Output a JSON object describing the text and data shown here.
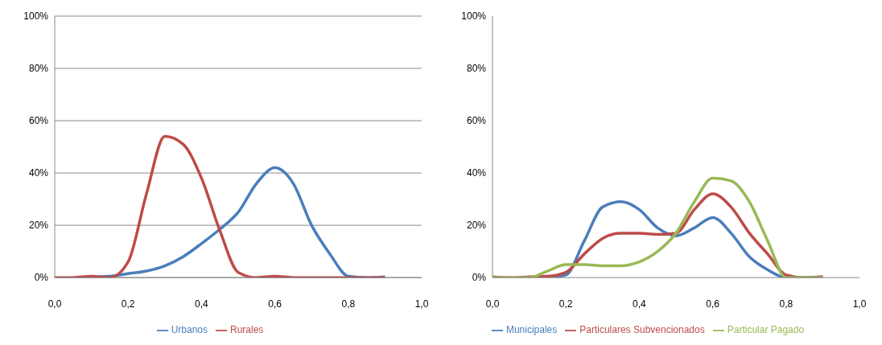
{
  "chart_data": [
    {
      "type": "line",
      "x": [
        0,
        0.05,
        0.1,
        0.15,
        0.2,
        0.25,
        0.3,
        0.35,
        0.4,
        0.45,
        0.5,
        0.55,
        0.6,
        0.65,
        0.7,
        0.75,
        0.8,
        0.85,
        0.9
      ],
      "series": [
        {
          "name": "Urbanos",
          "color": "#4a7ebb",
          "values": [
            null,
            null,
            0.3,
            0.5,
            1.5,
            2.5,
            4.5,
            8,
            13,
            18.5,
            25,
            36,
            42,
            36,
            20,
            9,
            0.5,
            0,
            0.3
          ]
        },
        {
          "name": "Rurales",
          "color": "#be4b48",
          "values": [
            0,
            0,
            0.5,
            0,
            6,
            32,
            54,
            51,
            38,
            18,
            2,
            0,
            0.5,
            0,
            0,
            0,
            0,
            0,
            0
          ]
        }
      ],
      "xlim": [
        0,
        1
      ],
      "xticks": [
        {
          "value": 0,
          "label": "0,0"
        },
        {
          "value": 0.2,
          "label": "0,2"
        },
        {
          "value": 0.4,
          "label": "0,4"
        },
        {
          "value": 0.6,
          "label": "0,6"
        },
        {
          "value": 0.8,
          "label": "0,8"
        },
        {
          "value": 1,
          "label": "1,0"
        }
      ],
      "ylim": [
        0,
        100
      ],
      "yticks": [
        {
          "value": 0,
          "label": "0%"
        },
        {
          "value": 20,
          "label": "20%"
        },
        {
          "value": 40,
          "label": "40%"
        },
        {
          "value": 60,
          "label": "60%"
        },
        {
          "value": 80,
          "label": "80%"
        },
        {
          "value": 100,
          "label": "100%"
        }
      ],
      "grid": "y",
      "legend": "bottom",
      "marker": "none",
      "line_style": "solid"
    },
    {
      "type": "line",
      "x": [
        0,
        0.05,
        0.1,
        0.15,
        0.2,
        0.25,
        0.3,
        0.35,
        0.4,
        0.45,
        0.5,
        0.55,
        0.6,
        0.65,
        0.7,
        0.75,
        0.8,
        0.85,
        0.9
      ],
      "series": [
        {
          "name": "Municipales",
          "color": "#4a7ebb",
          "values": [
            null,
            null,
            0,
            0,
            1,
            14,
            27,
            29,
            26,
            19,
            16,
            19,
            23,
            17,
            8,
            3,
            0,
            0,
            0.3
          ]
        },
        {
          "name": "Particulares Subvencionados",
          "color": "#be4b48",
          "values": [
            0.3,
            0,
            0.3,
            0.5,
            2,
            9,
            15,
            17,
            17,
            16.5,
            17,
            26,
            32,
            27,
            17,
            9,
            1,
            0,
            0.3
          ]
        },
        {
          "name": "Particular Pagado",
          "color": "#98b954",
          "values": [
            0,
            0,
            0,
            2.5,
            5,
            5,
            4.5,
            4.5,
            6,
            10,
            17,
            29,
            38,
            37,
            29,
            14,
            0,
            0,
            0
          ]
        }
      ],
      "xlim": [
        0,
        1
      ],
      "xticks": [
        {
          "value": 0,
          "label": "0,0"
        },
        {
          "value": 0.2,
          "label": "0,2"
        },
        {
          "value": 0.4,
          "label": "0,4"
        },
        {
          "value": 0.6,
          "label": "0,6"
        },
        {
          "value": 0.8,
          "label": "0,8"
        },
        {
          "value": 1,
          "label": "1,0"
        }
      ],
      "ylim": [
        0,
        100
      ],
      "yticks": [
        {
          "value": 0,
          "label": "0%"
        },
        {
          "value": 20,
          "label": "20%"
        },
        {
          "value": 40,
          "label": "40%"
        },
        {
          "value": 60,
          "label": "60%"
        },
        {
          "value": 80,
          "label": "80%"
        },
        {
          "value": 100,
          "label": "100%"
        }
      ],
      "grid": false,
      "legend": "bottom",
      "marker": "none",
      "line_style": "solid"
    }
  ]
}
